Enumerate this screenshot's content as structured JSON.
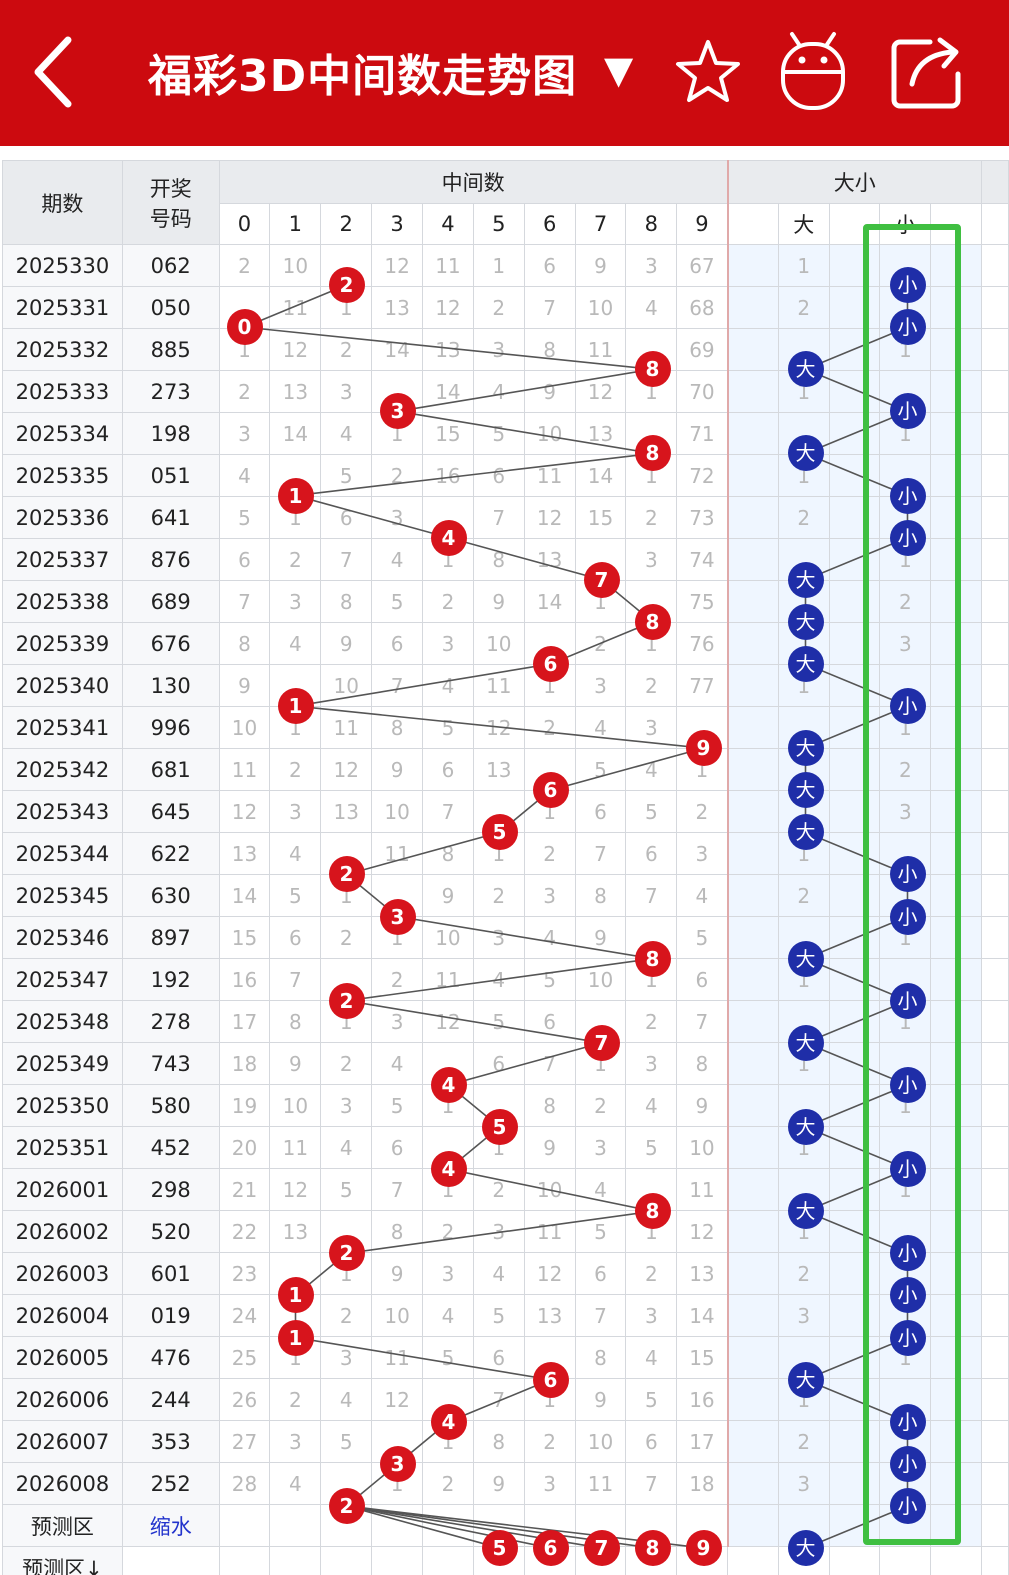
{
  "header": {
    "title": "福彩3D中间数走势图",
    "dropdown_icon": "caret-down-icon",
    "back_icon": "back-icon",
    "favorite_icon": "star-icon",
    "robot_icon": "robot-icon",
    "share_icon": "share-icon"
  },
  "columns": {
    "period": "期数",
    "code": "开奖号码",
    "code_line1": "开奖",
    "code_line2": "号码",
    "middle_group": "中间数",
    "size_group": "大小",
    "digits": [
      "0",
      "1",
      "2",
      "3",
      "4",
      "5",
      "6",
      "7",
      "8",
      "9"
    ],
    "big": "大",
    "small": "小"
  },
  "rows": [
    {
      "period": "2025330",
      "code": "062",
      "mid": 2,
      "vals": [
        2,
        10,
        null,
        12,
        11,
        1,
        6,
        9,
        3,
        67
      ],
      "size": "小",
      "big_miss": 1
    },
    {
      "period": "2025331",
      "code": "050",
      "mid": 0,
      "vals": [
        null,
        11,
        1,
        13,
        12,
        2,
        7,
        10,
        4,
        68
      ],
      "size": "小",
      "big_miss": 2
    },
    {
      "period": "2025332",
      "code": "885",
      "mid": 8,
      "vals": [
        1,
        12,
        2,
        14,
        13,
        3,
        8,
        11,
        null,
        69
      ],
      "size": "大",
      "small_miss": 1
    },
    {
      "period": "2025333",
      "code": "273",
      "mid": 3,
      "vals": [
        2,
        13,
        3,
        null,
        14,
        4,
        9,
        12,
        1,
        70
      ],
      "size": "小",
      "big_miss": 1
    },
    {
      "period": "2025334",
      "code": "198",
      "mid": 8,
      "vals": [
        3,
        14,
        4,
        1,
        15,
        5,
        10,
        13,
        null,
        71
      ],
      "size": "大",
      "small_miss": 1
    },
    {
      "period": "2025335",
      "code": "051",
      "mid": 1,
      "vals": [
        4,
        null,
        5,
        2,
        16,
        6,
        11,
        14,
        1,
        72
      ],
      "size": "小",
      "big_miss": 1
    },
    {
      "period": "2025336",
      "code": "641",
      "mid": 4,
      "vals": [
        5,
        1,
        6,
        3,
        null,
        7,
        12,
        15,
        2,
        73
      ],
      "size": "小",
      "big_miss": 2
    },
    {
      "period": "2025337",
      "code": "876",
      "mid": 7,
      "vals": [
        6,
        2,
        7,
        4,
        1,
        8,
        13,
        null,
        3,
        74
      ],
      "size": "大",
      "small_miss": 1
    },
    {
      "period": "2025338",
      "code": "689",
      "mid": 8,
      "vals": [
        7,
        3,
        8,
        5,
        2,
        9,
        14,
        1,
        null,
        75
      ],
      "size": "大",
      "small_miss": 2
    },
    {
      "period": "2025339",
      "code": "676",
      "mid": 6,
      "vals": [
        8,
        4,
        9,
        6,
        3,
        10,
        null,
        2,
        1,
        76
      ],
      "size": "大",
      "small_miss": 3
    },
    {
      "period": "2025340",
      "code": "130",
      "mid": 1,
      "vals": [
        9,
        null,
        10,
        7,
        4,
        11,
        1,
        3,
        2,
        77
      ],
      "size": "小",
      "big_miss": 1
    },
    {
      "period": "2025341",
      "code": "996",
      "mid": 9,
      "vals": [
        10,
        1,
        11,
        8,
        5,
        12,
        2,
        4,
        3,
        null
      ],
      "size": "大",
      "small_miss": 1
    },
    {
      "period": "2025342",
      "code": "681",
      "mid": 6,
      "vals": [
        11,
        2,
        12,
        9,
        6,
        13,
        null,
        5,
        4,
        1
      ],
      "size": "大",
      "small_miss": 2
    },
    {
      "period": "2025343",
      "code": "645",
      "mid": 5,
      "vals": [
        12,
        3,
        13,
        10,
        7,
        null,
        1,
        6,
        5,
        2
      ],
      "size": "大",
      "small_miss": 3
    },
    {
      "period": "2025344",
      "code": "622",
      "mid": 2,
      "vals": [
        13,
        4,
        null,
        11,
        8,
        1,
        2,
        7,
        6,
        3
      ],
      "size": "小",
      "big_miss": 1
    },
    {
      "period": "2025345",
      "code": "630",
      "mid": 3,
      "vals": [
        14,
        5,
        1,
        null,
        9,
        2,
        3,
        8,
        7,
        4
      ],
      "size": "小",
      "big_miss": 2
    },
    {
      "period": "2025346",
      "code": "897",
      "mid": 8,
      "vals": [
        15,
        6,
        2,
        1,
        10,
        3,
        4,
        9,
        null,
        5
      ],
      "size": "大",
      "small_miss": 1
    },
    {
      "period": "2025347",
      "code": "192",
      "mid": 2,
      "vals": [
        16,
        7,
        null,
        2,
        11,
        4,
        5,
        10,
        1,
        6
      ],
      "size": "小",
      "big_miss": 1
    },
    {
      "period": "2025348",
      "code": "278",
      "mid": 7,
      "vals": [
        17,
        8,
        1,
        3,
        12,
        5,
        6,
        null,
        2,
        7
      ],
      "size": "大",
      "small_miss": 1
    },
    {
      "period": "2025349",
      "code": "743",
      "mid": 4,
      "vals": [
        18,
        9,
        2,
        4,
        null,
        6,
        7,
        1,
        3,
        8
      ],
      "size": "小",
      "big_miss": 1
    },
    {
      "period": "2025350",
      "code": "580",
      "mid": 5,
      "vals": [
        19,
        10,
        3,
        5,
        1,
        null,
        8,
        2,
        4,
        9
      ],
      "size": "大",
      "small_miss": 1
    },
    {
      "period": "2025351",
      "code": "452",
      "mid": 4,
      "vals": [
        20,
        11,
        4,
        6,
        null,
        1,
        9,
        3,
        5,
        10
      ],
      "size": "小",
      "big_miss": 1
    },
    {
      "period": "2026001",
      "code": "298",
      "mid": 8,
      "vals": [
        21,
        12,
        5,
        7,
        1,
        2,
        10,
        4,
        null,
        11
      ],
      "size": "大",
      "small_miss": 1
    },
    {
      "period": "2026002",
      "code": "520",
      "mid": 2,
      "vals": [
        22,
        13,
        null,
        8,
        2,
        3,
        11,
        5,
        1,
        12
      ],
      "size": "小",
      "big_miss": 1
    },
    {
      "period": "2026003",
      "code": "601",
      "mid": 1,
      "vals": [
        23,
        null,
        1,
        9,
        3,
        4,
        12,
        6,
        2,
        13
      ],
      "size": "小",
      "big_miss": 2
    },
    {
      "period": "2026004",
      "code": "019",
      "mid": 1,
      "vals": [
        24,
        null,
        2,
        10,
        4,
        5,
        13,
        7,
        3,
        14
      ],
      "size": "小",
      "big_miss": 3
    },
    {
      "period": "2026005",
      "code": "476",
      "mid": 6,
      "vals": [
        25,
        1,
        3,
        11,
        5,
        6,
        null,
        8,
        4,
        15
      ],
      "size": "大",
      "small_miss": 1
    },
    {
      "period": "2026006",
      "code": "244",
      "mid": 4,
      "vals": [
        26,
        2,
        4,
        12,
        null,
        7,
        1,
        9,
        5,
        16
      ],
      "size": "小",
      "big_miss": 1
    },
    {
      "period": "2026007",
      "code": "353",
      "mid": 3,
      "vals": [
        27,
        3,
        5,
        null,
        1,
        8,
        2,
        10,
        6,
        17
      ],
      "size": "小",
      "big_miss": 2
    },
    {
      "period": "2026008",
      "code": "252",
      "mid": 2,
      "vals": [
        28,
        4,
        null,
        1,
        2,
        9,
        3,
        11,
        7,
        18
      ],
      "size": "小",
      "big_miss": 3
    }
  ],
  "prediction": {
    "label": "预测区",
    "shrink": "缩水",
    "digits": [
      5,
      6,
      7,
      8,
      9
    ],
    "size": "大",
    "next_label": "预测区↓"
  },
  "colors": {
    "header_red": "#cc0a0f",
    "ball_red": "#d7141c",
    "ball_blue": "#1f2ea8",
    "highlight_green": "#3fbf41"
  }
}
